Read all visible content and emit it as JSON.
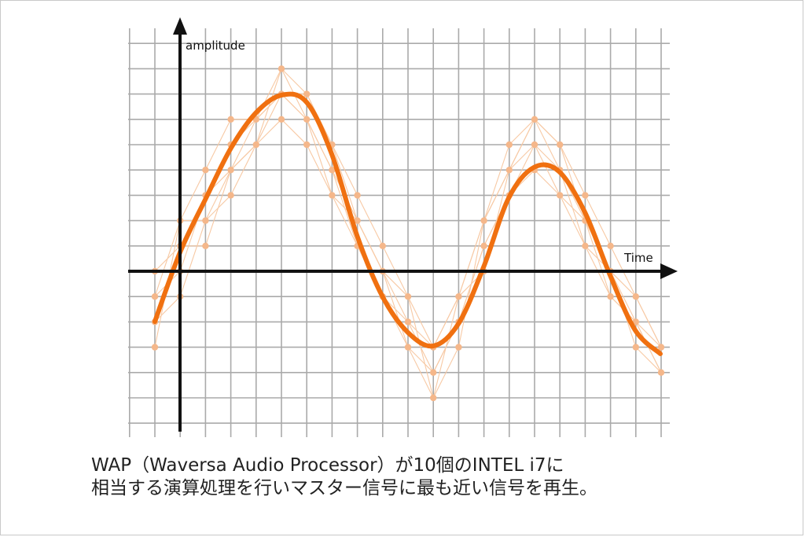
{
  "diagram": {
    "y_axis_label": "amplitude",
    "x_axis_label": "Time",
    "colors": {
      "grid": "#aaaaaa",
      "axis": "#111111",
      "master_wave": "#f07010",
      "candidate_lines": "#f7c9a4",
      "candidate_points": "#f5b78a"
    }
  },
  "caption": {
    "line1": "WAP（Waversa Audio Processor）が10個のINTEL i7に",
    "line2": "相当する演算処理を行いマスター信号に最も近い信号を再生。"
  }
}
